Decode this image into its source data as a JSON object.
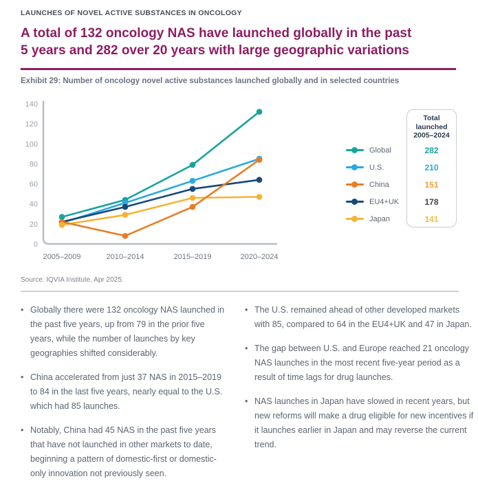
{
  "header": {
    "kicker": "LAUNCHES OF NOVEL ACTIVE SUBSTANCES IN ONCOLOGY",
    "title_lines": [
      "A total of 132 oncology NAS have launched globally in the past",
      "5 years and 282 over 20 years with large geographic variations"
    ],
    "exhibit_caption": "Exhibit 29: Number of oncology novel active substances launched globally and in selected countries"
  },
  "chart_data": {
    "type": "line",
    "title": "Number of oncology novel active substances launched globally and in selected countries",
    "categories": [
      "2005–2009",
      "2010–2014",
      "2015–2019",
      "2020–2024"
    ],
    "series": [
      {
        "name": "Global",
        "color": "#18A39D",
        "values": [
          27,
          44,
          79,
          132
        ],
        "total": 282,
        "total_color": "#18A39D"
      },
      {
        "name": "U.S.",
        "color": "#2AA8E0",
        "values": [
          21,
          41,
          63,
          85
        ],
        "total": 210,
        "total_color": "#2AA8E0"
      },
      {
        "name": "China",
        "color": "#E87D23",
        "values": [
          22,
          8,
          37,
          84
        ],
        "total": 151,
        "total_color": "#EDA23C"
      },
      {
        "name": "EU4+UK",
        "color": "#17497B",
        "values": [
          22,
          37,
          55,
          64
        ],
        "total": 178,
        "total_color": "#3E434B"
      },
      {
        "name": "Japan",
        "color": "#F5B335",
        "values": [
          19,
          29,
          46,
          47
        ],
        "total": 141,
        "total_color": "#F0C04A"
      }
    ],
    "xlabel": "",
    "ylabel": "",
    "ylim": [
      0,
      140
    ],
    "yticks": [
      0,
      20,
      40,
      60,
      80,
      100,
      120,
      140
    ],
    "grid": false,
    "legend_position": "right",
    "totals_title": "Total\nlaunched\n2005–2024"
  },
  "chart_meta": {
    "source": "Source: IQVIA Institute, Apr 2025.",
    "axis_color": "#B9BDC3",
    "ytick_color": "#9AA1AA",
    "xtick_color": "#6E7682"
  },
  "bullets": {
    "marker": "•",
    "left": [
      "Globally there were 132 oncology NAS launched in the past five years, up from 79 in the prior five years, while the number of launches by key geographies shifted considerably.",
      "China accelerated from just 37 NAS in 2015–2019 to 84 in the last five years, nearly equal to the U.S. which had 85 launches.",
      "Notably, China had 45 NAS in the past five years that have not launched in other markets to date, beginning a pattern of domestic-first or domestic-only innovation not previously seen."
    ],
    "right": [
      "The U.S. remained ahead of other developed markets with 85, compared to 64 in the EU4+UK and 47 in Japan.",
      "The gap between U.S. and Europe reached 21 oncology NAS launches in the most recent five-year period as a result of time lags for drug launches.",
      "NAS launches in Japan have slowed in recent years, but new reforms will make a drug eligible for new incentives if it launches earlier in Japan and may reverse the current trend."
    ]
  }
}
